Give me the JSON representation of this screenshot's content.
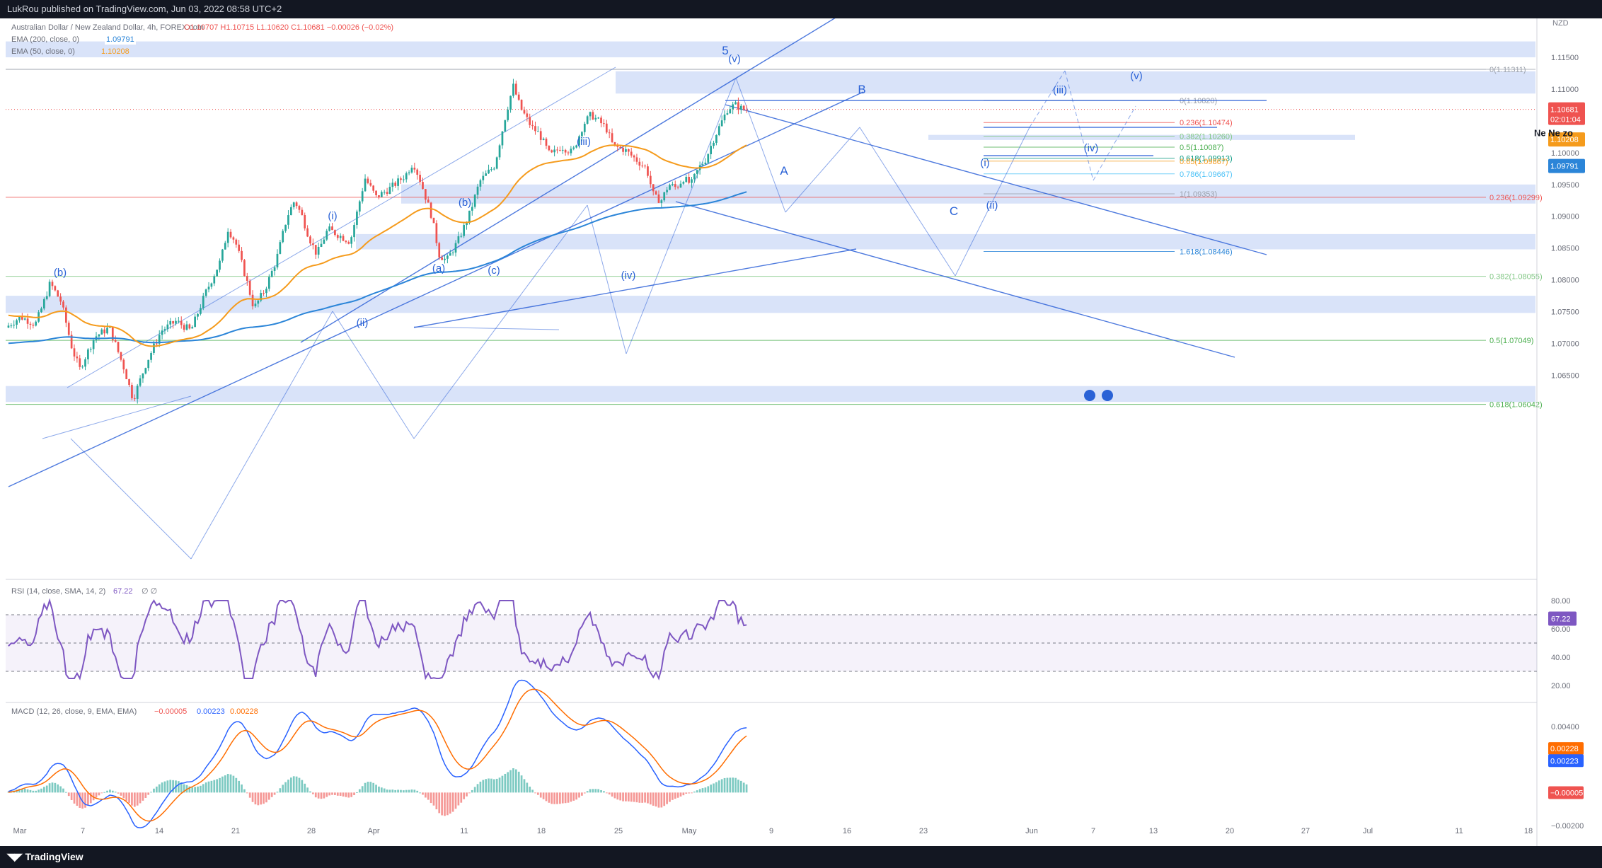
{
  "header": {
    "published": "LukRou published on TradingView.com, Jun 03, 2022 08:58 UTC+2"
  },
  "footer": {
    "brand": "TradingView"
  },
  "colors": {
    "zone": "#c9d7f7",
    "wave_label": "#2a62d6",
    "ema200": "#2b85d8",
    "ema50": "#f59b1c",
    "up": "#26a69a",
    "down": "#ef5350",
    "rsi": "#7e57c2",
    "macd": "#2962ff",
    "signal": "#ff6d00"
  },
  "chart_data": [
    {
      "type": "candlestick",
      "instrument": "Australian Dollar / New Zealand Dollar, 4h, FOREX.com",
      "ohlc_label": "O1.10707  H1.10715  L1.10620  C1.10681  −0.00026 (−0.02%)",
      "currency": "NZD",
      "indicators": [
        {
          "name": "EMA (200, close, 0)",
          "value": "1.09791"
        },
        {
          "name": "EMA (50, close, 0)",
          "value": "1.10208"
        }
      ],
      "y_ticks": [
        "1.11500",
        "1.11000",
        "1.10500",
        "1.10000",
        "1.09500",
        "1.09000",
        "1.08500",
        "1.08000",
        "1.07500",
        "1.07000",
        "1.06500"
      ],
      "y_tick_values": [
        1.115,
        1.11,
        1.105,
        1.1,
        1.095,
        1.09,
        1.085,
        1.08,
        1.075,
        1.07,
        1.065
      ],
      "x_ticks": [
        "Mar",
        "7",
        "14",
        "21",
        "28",
        "Apr",
        "11",
        "18",
        "25",
        "May",
        "9",
        "16",
        "23",
        "Jun",
        "7",
        "13",
        "20",
        "27",
        "Jul",
        "11",
        "18"
      ],
      "price_tags": [
        {
          "label": "1.10681",
          "sub": "02:01:04",
          "value": 1.10681,
          "color": "#ef5350"
        },
        {
          "label": "1.10208",
          "value": 1.10208,
          "color": "#f59b1c"
        },
        {
          "label": "1.09791",
          "value": 1.09791,
          "color": "#2b85d8"
        }
      ],
      "fib_levels": [
        {
          "label": "0(1.11311)",
          "value": 1.11311,
          "color": "#9aa0ab"
        },
        {
          "label": "0(1.10820)",
          "value": 1.1082,
          "color": "#9aa0ab"
        },
        {
          "label": "0.236(1.10474)",
          "value": 1.10474,
          "color": "#ef5350"
        },
        {
          "label": "0.382(1.10260)",
          "value": 1.1026,
          "color": "#81c784"
        },
        {
          "label": "0.5(1.10087)",
          "value": 1.10087,
          "color": "#4caf50"
        },
        {
          "label": "0.618(1.09913)",
          "value": 1.09913,
          "color": "#089981"
        },
        {
          "label": "0.65(1.09867)",
          "value": 1.09867,
          "color": "#f59b1c"
        },
        {
          "label": "0.786(1.09667)",
          "value": 1.09667,
          "color": "#4fc3f7"
        },
        {
          "label": "1(1.09353)",
          "value": 1.09353,
          "color": "#9aa0ab"
        },
        {
          "label": "0.236(1.09299)",
          "value": 1.09299,
          "color": "#ef5350"
        },
        {
          "label": "1.618(1.08446)",
          "value": 1.08446,
          "color": "#2b85d8"
        },
        {
          "label": "0.382(1.08055)",
          "value": 1.08055,
          "color": "#81c784"
        },
        {
          "label": "0.5(1.07049)",
          "value": 1.07049,
          "color": "#4caf50"
        },
        {
          "label": "0.618(1.06042)",
          "value": 1.06042,
          "color": "#4caf50"
        }
      ],
      "wave_labels": [
        "(b)",
        "(i)",
        "(ii)",
        "(a)",
        "(b)",
        "(c)",
        "(iii)",
        "(iv)",
        "5",
        "(v)",
        "A",
        "B",
        "C",
        "(i)",
        "(ii)",
        "(iii)",
        "(iv)",
        "(v)"
      ],
      "side_note": "Ne Ne zo"
    },
    {
      "type": "line",
      "name": "RSI (14, close, SMA, 14, 2)",
      "value": "67.22",
      "extra": "∅ ∅",
      "y_ticks": [
        "80.00",
        "60.00",
        "40.00",
        "20.00"
      ],
      "y_tick_values": [
        80,
        60,
        40,
        20
      ],
      "bands": [
        70,
        50,
        30
      ]
    },
    {
      "type": "bar",
      "name": "MACD (12, 26, close, 9, EMA, EMA)",
      "values": [
        "−0.00005",
        "0.00223",
        "0.00228"
      ],
      "y_ticks": [
        "0.00400",
        "0.00200",
        "0.00000",
        "−0.00200"
      ],
      "y_tick_values": [
        0.004,
        0.002,
        0,
        -0.002
      ],
      "tags": [
        {
          "label": "0.00228",
          "value": 0.00228,
          "color": "#ff6d00"
        },
        {
          "label": "0.00223",
          "value": 0.00223,
          "color": "#2962ff"
        },
        {
          "label": "−0.00005",
          "value": -5e-05,
          "color": "#ef5350"
        }
      ]
    }
  ]
}
